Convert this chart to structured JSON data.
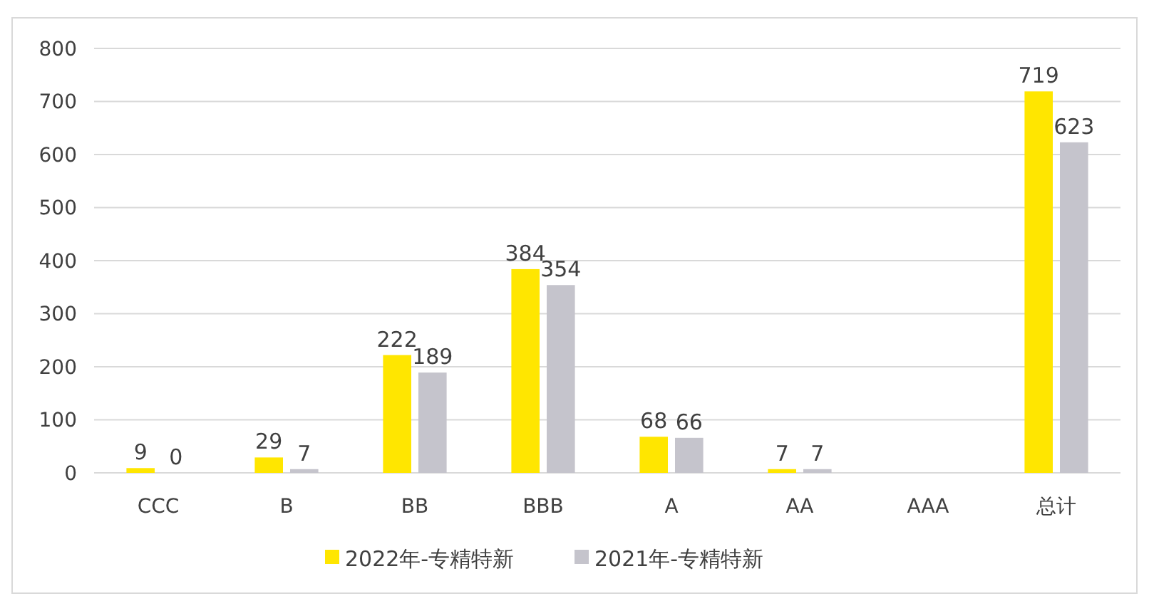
{
  "chart_data": {
    "type": "bar",
    "categories": [
      "CCC",
      "B",
      "BB",
      "BBB",
      "A",
      "AA",
      "AAA",
      "总计"
    ],
    "series": [
      {
        "name": "2022年-专精特新",
        "color": "#ffe600",
        "values": [
          9,
          29,
          222,
          384,
          68,
          7,
          null,
          719
        ]
      },
      {
        "name": "2021年-专精特新",
        "color": "#c5c4cc",
        "values": [
          0,
          7,
          189,
          354,
          66,
          7,
          null,
          623
        ]
      }
    ],
    "ylim": [
      0,
      800
    ],
    "yticks": [
      0,
      100,
      200,
      300,
      400,
      500,
      600,
      700,
      800
    ],
    "grid": "y",
    "legend": "bottom",
    "data_labels": true
  }
}
